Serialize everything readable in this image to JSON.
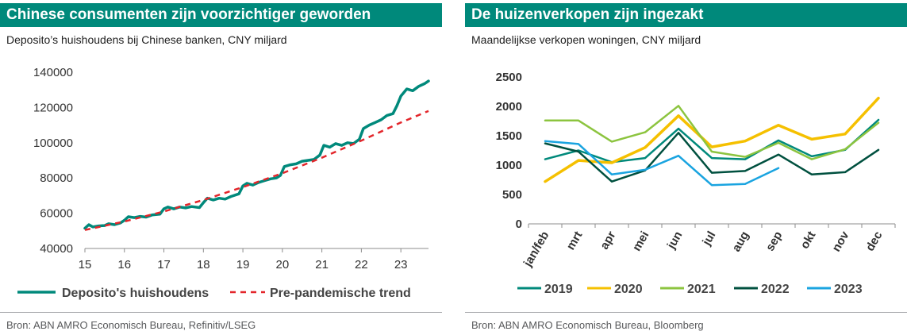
{
  "left": {
    "title": "Chinese consumenten zijn voorzichtiger geworden",
    "subtitle": "Deposito’s huishoudens bij Chinese banken, CNY miljard",
    "source": "Bron: ABN AMRO Economisch Bureau, Refinitiv/LSEG"
  },
  "right": {
    "title": "De huizenverkopen zijn ingezakt",
    "subtitle": "Maandelijkse verkopen woningen, CNY miljard",
    "source": "Bron: ABN AMRO Economisch Bureau, Bloomberg"
  },
  "chart_data": [
    {
      "type": "line",
      "title": "Chinese consumenten zijn voorzichtiger geworden",
      "subtitle": "Deposito’s huishoudens bij Chinese banken, CNY miljard",
      "x_ticks": [
        "15",
        "16",
        "17",
        "18",
        "19",
        "20",
        "21",
        "22",
        "23"
      ],
      "xlim": [
        15,
        23.7
      ],
      "y_ticks": [
        "40000",
        "60000",
        "80000",
        "100000",
        "120000",
        "140000"
      ],
      "ylim": [
        40000,
        140000
      ],
      "grid": false,
      "legend": "bottom",
      "series": [
        {
          "name": "Deposito's huishoudens",
          "style": "solid",
          "color": "#00897b",
          "points": [
            [
              15.0,
              51500
            ],
            [
              15.1,
              53500
            ],
            [
              15.2,
              52200
            ],
            [
              15.35,
              52800
            ],
            [
              15.5,
              53000
            ],
            [
              15.6,
              54000
            ],
            [
              15.75,
              53500
            ],
            [
              15.9,
              54500
            ],
            [
              16.0,
              56000
            ],
            [
              16.1,
              58000
            ],
            [
              16.25,
              57500
            ],
            [
              16.4,
              58200
            ],
            [
              16.55,
              57800
            ],
            [
              16.7,
              59000
            ],
            [
              16.9,
              59500
            ],
            [
              17.0,
              62500
            ],
            [
              17.1,
              63500
            ],
            [
              17.25,
              62500
            ],
            [
              17.4,
              63500
            ],
            [
              17.55,
              63000
            ],
            [
              17.7,
              63800
            ],
            [
              17.9,
              63200
            ],
            [
              18.0,
              66000
            ],
            [
              18.1,
              68500
            ],
            [
              18.25,
              67500
            ],
            [
              18.4,
              68500
            ],
            [
              18.55,
              68000
            ],
            [
              18.7,
              69500
            ],
            [
              18.9,
              71000
            ],
            [
              19.0,
              75500
            ],
            [
              19.1,
              77000
            ],
            [
              19.25,
              76000
            ],
            [
              19.4,
              77500
            ],
            [
              19.55,
              78500
            ],
            [
              19.7,
              79500
            ],
            [
              19.85,
              80000
            ],
            [
              19.95,
              81500
            ],
            [
              20.05,
              86500
            ],
            [
              20.2,
              87500
            ],
            [
              20.35,
              88000
            ],
            [
              20.5,
              89500
            ],
            [
              20.65,
              90000
            ],
            [
              20.8,
              90500
            ],
            [
              20.95,
              93000
            ],
            [
              21.05,
              98500
            ],
            [
              21.2,
              97500
            ],
            [
              21.35,
              99500
            ],
            [
              21.5,
              98500
            ],
            [
              21.65,
              100000
            ],
            [
              21.8,
              99500
            ],
            [
              21.95,
              102000
            ],
            [
              22.05,
              108000
            ],
            [
              22.2,
              110000
            ],
            [
              22.35,
              111500
            ],
            [
              22.5,
              113000
            ],
            [
              22.65,
              115500
            ],
            [
              22.8,
              116500
            ],
            [
              22.9,
              121000
            ],
            [
              23.0,
              126500
            ],
            [
              23.15,
              130500
            ],
            [
              23.3,
              129500
            ],
            [
              23.45,
              132000
            ],
            [
              23.6,
              133500
            ],
            [
              23.7,
              135000
            ]
          ]
        },
        {
          "name": "Pre-pandemische trend",
          "style": "dashed",
          "color": "#e3262b",
          "points": [
            [
              15.0,
              50500
            ],
            [
              16.0,
              55300
            ],
            [
              17.0,
              61000
            ],
            [
              18.0,
              67500
            ],
            [
              19.0,
              74800
            ],
            [
              20.0,
              82700
            ],
            [
              21.0,
              91500
            ],
            [
              22.0,
              101200
            ],
            [
              23.0,
              111500
            ],
            [
              23.7,
              118000
            ]
          ]
        }
      ]
    },
    {
      "type": "line",
      "title": "De huizenverkopen zijn ingezakt",
      "subtitle": "Maandelijkse verkopen woningen, CNY miljard",
      "categories": [
        "jan/feb",
        "mrt",
        "apr",
        "mei",
        "jun",
        "jul",
        "aug",
        "sep",
        "okt",
        "nov",
        "dec"
      ],
      "y_ticks": [
        "0",
        "500",
        "1000",
        "1500",
        "2000",
        "2500"
      ],
      "ylim": [
        0,
        2500
      ],
      "grid": false,
      "legend": "bottom",
      "series": [
        {
          "name": "2019",
          "color": "#00897b",
          "values": [
            1100,
            1250,
            1050,
            1120,
            1620,
            1120,
            1100,
            1420,
            1150,
            1260,
            1770
          ]
        },
        {
          "name": "2020",
          "color": "#f5c000",
          "values": [
            720,
            1080,
            1040,
            1300,
            1840,
            1310,
            1410,
            1680,
            1440,
            1530,
            2140
          ]
        },
        {
          "name": "2021",
          "color": "#8cc43f",
          "values": [
            1760,
            1760,
            1400,
            1560,
            2010,
            1230,
            1140,
            1380,
            1100,
            1270,
            1720
          ]
        },
        {
          "name": "2022",
          "color": "#00503f",
          "values": [
            1370,
            1230,
            720,
            910,
            1550,
            870,
            900,
            1180,
            840,
            880,
            1260
          ]
        },
        {
          "name": "2023",
          "color": "#1aa4e0",
          "values": [
            1410,
            1360,
            840,
            920,
            1160,
            660,
            680,
            950,
            null,
            null,
            null
          ]
        }
      ]
    }
  ]
}
